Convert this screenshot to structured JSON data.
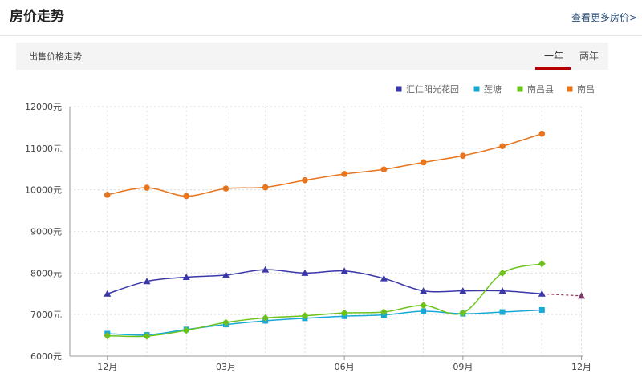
{
  "header": {
    "title": "房价走势",
    "more_link": "查看更多房价>"
  },
  "tabbar": {
    "label": "出售价格走势",
    "tabs": [
      "一年",
      "两年"
    ],
    "active": 0
  },
  "chart_data": {
    "type": "line",
    "title": "出售价格走势",
    "x_tick_labels": [
      "12月",
      "03月",
      "06月",
      "09月",
      "12月"
    ],
    "y_tick_labels": [
      "6000元",
      "7000元",
      "8000元",
      "9000元",
      "10000元",
      "11000元",
      "12000元"
    ],
    "ylim": [
      6000,
      12000
    ],
    "x_points": 12,
    "x_slots": 13,
    "series": [
      {
        "name": "汇仁阳光花园",
        "color": "#3a37a8",
        "marker": "triangle",
        "values": [
          7500,
          7800,
          7900,
          7950,
          8080,
          8000,
          8050,
          7870,
          7570,
          7570,
          7570,
          7500
        ],
        "forecast": 7450
      },
      {
        "name": "莲塘",
        "color": "#19a9d6",
        "marker": "square",
        "values": [
          6540,
          6510,
          6640,
          6760,
          6850,
          6910,
          6960,
          6990,
          7080,
          7020,
          7060,
          7110
        ]
      },
      {
        "name": "南昌县",
        "color": "#6cc21a",
        "marker": "diamond",
        "values": [
          6490,
          6480,
          6620,
          6810,
          6920,
          6970,
          7040,
          7060,
          7220,
          7040,
          8000,
          8220
        ]
      },
      {
        "name": "南昌",
        "color": "#e8741e",
        "marker": "circle",
        "values": [
          9880,
          10050,
          9850,
          10030,
          10060,
          10230,
          10380,
          10490,
          10660,
          10820,
          11050,
          11350
        ]
      }
    ]
  }
}
